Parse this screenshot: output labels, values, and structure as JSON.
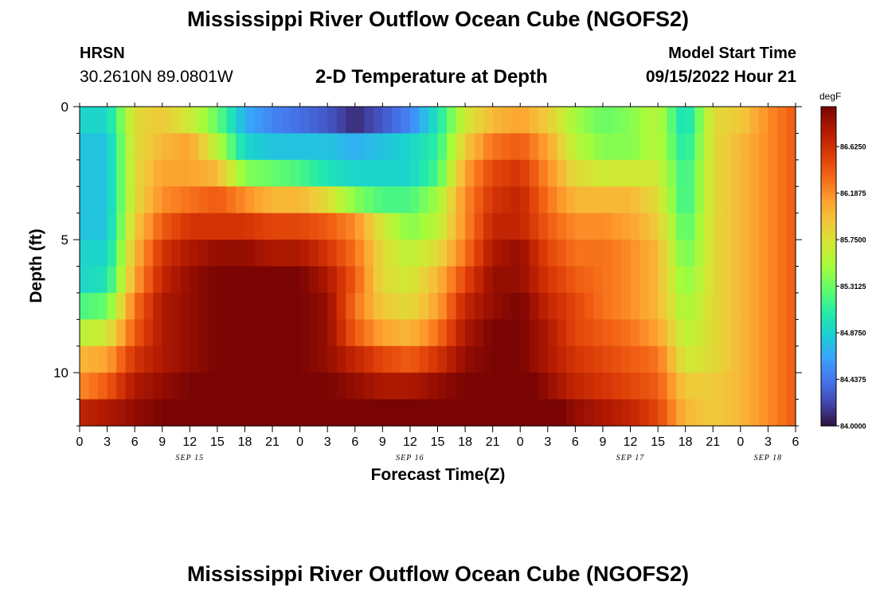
{
  "header": {
    "title": "Mississippi River Outflow Ocean Cube (NGOFS2)",
    "station_name": "HRSN",
    "station_coords": "30.2610N  89.0801W",
    "subtitle": "2-D Temperature at Depth",
    "model_start_label": "Model Start Time",
    "model_start_value": "09/15/2022 Hour 21"
  },
  "footer": {
    "title": "Mississippi River Outflow Ocean Cube (NGOFS2)"
  },
  "chart_data": {
    "type": "heatmap",
    "title": "2-D Temperature at Depth",
    "xlabel": "Forecast Time(Z)",
    "ylabel": "Depth (ft)",
    "x_range_hours": [
      0,
      78
    ],
    "x_ticks": {
      "hours": [
        0,
        3,
        6,
        9,
        12,
        15,
        18,
        21,
        24,
        27,
        30,
        33,
        36,
        39,
        42,
        45,
        48,
        51,
        54,
        57,
        60,
        63,
        66,
        69,
        72,
        75,
        78
      ],
      "labels": [
        "0",
        "3",
        "6",
        "9",
        "12",
        "15",
        "18",
        "21",
        "0",
        "3",
        "6",
        "9",
        "12",
        "15",
        "18",
        "21",
        "0",
        "3",
        "6",
        "9",
        "12",
        "15",
        "18",
        "21",
        "0",
        "3",
        "6"
      ]
    },
    "date_labels": [
      {
        "hour": 12,
        "label": "SEP 15"
      },
      {
        "hour": 36,
        "label": "SEP 16"
      },
      {
        "hour": 60,
        "label": "SEP 17"
      },
      {
        "hour": 75,
        "label": "SEP 18"
      }
    ],
    "y_range": [
      0,
      12
    ],
    "y_ticks": [
      0,
      5,
      10
    ],
    "y_inverted": true,
    "colorbar": {
      "unit": "degF",
      "min": 84.0,
      "max": 87.0,
      "ticks": [
        84.0,
        84.4375,
        84.875,
        85.3125,
        85.75,
        86.1875,
        86.625
      ],
      "tick_labels": [
        "84.0000",
        "84.4375",
        "84.8750",
        "85.3125",
        "85.7500",
        "86.1875",
        "86.6250"
      ]
    },
    "depth_layers_ft": [
      0.5,
      1.5,
      2.5,
      3.5,
      4.5,
      5.5,
      6.5,
      7.5,
      8.5,
      9.5,
      10.5,
      11.5
    ],
    "keyframe_hours": [
      0,
      3,
      6,
      9,
      12,
      15,
      18,
      21,
      24,
      27,
      30,
      33,
      36,
      39,
      42,
      45,
      48,
      51,
      54,
      57,
      60,
      63,
      66,
      69,
      72,
      75,
      78
    ],
    "values_degF": [
      [
        84.9,
        84.9,
        85.8,
        85.9,
        85.7,
        85.3,
        84.7,
        84.5,
        84.4,
        84.3,
        84.1,
        84.3,
        84.5,
        85.0,
        85.7,
        86.0,
        86.1,
        85.9,
        85.5,
        85.3,
        85.4,
        85.6,
        84.9,
        85.8,
        85.9,
        86.2,
        86.4
      ],
      [
        84.8,
        84.8,
        85.8,
        86.0,
        86.1,
        85.6,
        84.9,
        84.8,
        84.8,
        84.8,
        84.7,
        84.8,
        84.9,
        85.1,
        85.9,
        86.3,
        86.4,
        86.1,
        85.6,
        85.4,
        85.4,
        85.6,
        85.0,
        85.8,
        86.0,
        86.2,
        86.4
      ],
      [
        84.8,
        84.8,
        85.8,
        86.1,
        86.1,
        86.0,
        85.4,
        85.3,
        85.2,
        85.0,
        84.9,
        84.9,
        84.9,
        85.2,
        86.1,
        86.5,
        86.6,
        86.2,
        85.8,
        85.7,
        85.7,
        85.7,
        85.1,
        85.8,
        86.0,
        86.2,
        86.4
      ],
      [
        84.8,
        84.8,
        85.8,
        86.2,
        86.3,
        86.4,
        86.2,
        86.0,
        86.0,
        85.8,
        85.4,
        85.2,
        85.2,
        85.5,
        86.2,
        86.6,
        86.7,
        86.3,
        86.0,
        86.0,
        86.0,
        85.8,
        85.1,
        85.8,
        86.0,
        86.2,
        86.4
      ],
      [
        84.8,
        84.8,
        85.9,
        86.4,
        86.6,
        86.6,
        86.6,
        86.5,
        86.5,
        86.4,
        86.2,
        85.7,
        85.4,
        85.6,
        86.2,
        86.7,
        86.7,
        86.4,
        86.2,
        86.2,
        86.1,
        85.9,
        85.2,
        85.8,
        86.0,
        86.2,
        86.4
      ],
      [
        84.9,
        84.9,
        86.0,
        86.6,
        86.8,
        86.9,
        86.9,
        86.8,
        86.8,
        86.6,
        86.3,
        85.8,
        85.6,
        85.8,
        86.3,
        86.8,
        86.9,
        86.5,
        86.3,
        86.3,
        86.2,
        86.0,
        85.3,
        85.8,
        86.0,
        86.2,
        86.4
      ],
      [
        84.9,
        85.0,
        86.1,
        86.7,
        86.9,
        87.0,
        87.0,
        87.0,
        87.0,
        86.8,
        86.4,
        85.8,
        85.7,
        86.0,
        86.5,
        86.9,
        86.9,
        86.6,
        86.4,
        86.3,
        86.2,
        86.0,
        85.4,
        85.8,
        86.0,
        86.2,
        86.4
      ],
      [
        85.2,
        85.3,
        86.3,
        86.8,
        86.9,
        87.0,
        87.0,
        87.0,
        87.0,
        86.9,
        86.3,
        85.9,
        85.8,
        86.1,
        86.7,
        86.9,
        87.0,
        86.7,
        86.5,
        86.3,
        86.2,
        86.0,
        85.5,
        85.8,
        86.0,
        86.2,
        86.4
      ],
      [
        85.6,
        85.7,
        86.4,
        86.8,
        86.9,
        87.0,
        87.0,
        87.0,
        87.0,
        86.9,
        86.4,
        86.1,
        86.0,
        86.3,
        86.8,
        87.0,
        87.0,
        86.8,
        86.5,
        86.4,
        86.3,
        86.1,
        85.6,
        85.8,
        86.0,
        86.2,
        86.4
      ],
      [
        86.0,
        86.1,
        86.6,
        86.8,
        86.9,
        87.0,
        87.0,
        87.0,
        87.0,
        86.9,
        86.7,
        86.5,
        86.4,
        86.6,
        86.9,
        87.0,
        87.0,
        86.8,
        86.6,
        86.5,
        86.4,
        86.3,
        85.7,
        85.8,
        86.0,
        86.2,
        86.4
      ],
      [
        86.2,
        86.4,
        86.8,
        86.9,
        87.0,
        87.0,
        87.0,
        87.0,
        87.0,
        87.0,
        86.9,
        86.8,
        86.8,
        86.9,
        87.0,
        87.1,
        87.1,
        86.9,
        86.7,
        86.6,
        86.5,
        86.4,
        85.9,
        85.9,
        86.0,
        86.2,
        86.4
      ],
      [
        86.7,
        86.8,
        86.9,
        87.0,
        87.0,
        87.0,
        87.0,
        87.0,
        87.0,
        87.0,
        87.0,
        87.0,
        87.0,
        87.0,
        87.1,
        87.2,
        87.2,
        87.1,
        86.9,
        86.8,
        86.7,
        86.5,
        86.0,
        85.9,
        86.0,
        86.2,
        86.4
      ]
    ],
    "colormap": [
      "#30123b",
      "#4145ab",
      "#4675ed",
      "#39a2fc",
      "#1bcfd4",
      "#24eca6",
      "#61fc6c",
      "#a4fc3b",
      "#d1e834",
      "#f3c63a",
      "#fe9b2d",
      "#f36315",
      "#d93806",
      "#b11901",
      "#7a0403"
    ]
  }
}
